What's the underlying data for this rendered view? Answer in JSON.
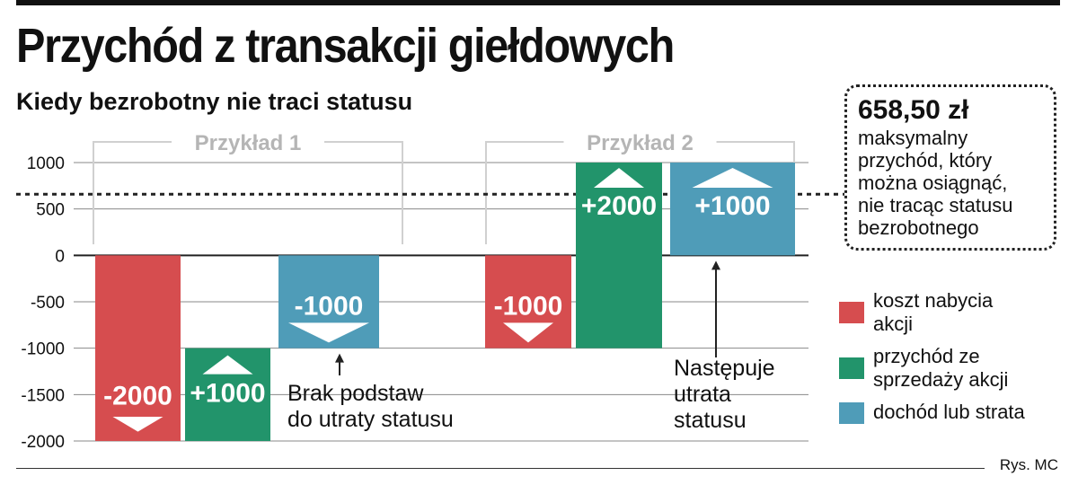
{
  "title": "Przychód z transakcji giełdowych",
  "subtitle": "Kiedy bezrobotny nie traci statusu",
  "callout": {
    "amount": "658,50 zł",
    "lines": [
      "maksymalny",
      "przychód, który",
      "można osiągnąć,",
      "nie tracąc statusu",
      "bezrobotnego"
    ]
  },
  "legend": [
    {
      "label_lines": [
        "koszt nabycia",
        "akcji"
      ],
      "color": "#d64d4f",
      "icon": "red-square"
    },
    {
      "label_lines": [
        "przychód ze",
        "sprzedaży akcji"
      ],
      "color": "#22946b",
      "icon": "green-square"
    },
    {
      "label_lines": [
        "dochód lub strata"
      ],
      "color": "#4f9cb8",
      "icon": "blue-square"
    }
  ],
  "credit": "Rys. MC",
  "chart_data": {
    "type": "bar",
    "y_ticks": [
      "1000",
      "500",
      "0",
      "-500",
      "-1000",
      "-1500",
      "-2000"
    ],
    "ylim": [
      -2000,
      1000
    ],
    "threshold": 658.5,
    "groups": [
      "Przykład 1",
      "Przykład 2"
    ],
    "bars": [
      {
        "group": 0,
        "kind": "cost",
        "label": "-2000",
        "start": 0,
        "end": -2000,
        "arrow": "down"
      },
      {
        "group": 0,
        "kind": "revenue",
        "label": "+1000",
        "start": -2000,
        "end": -1000,
        "arrow": "up"
      },
      {
        "group": 0,
        "kind": "result",
        "label": "-1000",
        "start": 0,
        "end": -1000,
        "arrow": "down"
      },
      {
        "group": 1,
        "kind": "cost",
        "label": "-1000",
        "start": 0,
        "end": -1000,
        "arrow": "down"
      },
      {
        "group": 1,
        "kind": "revenue",
        "label": "+2000",
        "start": -1000,
        "end": 1000,
        "arrow": "up"
      },
      {
        "group": 1,
        "kind": "result",
        "label": "+1000",
        "start": 0,
        "end": 1000,
        "arrow": "up"
      }
    ],
    "colors": {
      "cost": "#d64d4f",
      "revenue": "#22946b",
      "result": "#4f9cb8"
    },
    "annotations": [
      {
        "lines": [
          "Brak podstaw",
          "do utraty statusu"
        ],
        "bar": 2
      },
      {
        "lines": [
          "Następuje",
          "utrata",
          "statusu"
        ],
        "bar": 5
      }
    ]
  }
}
